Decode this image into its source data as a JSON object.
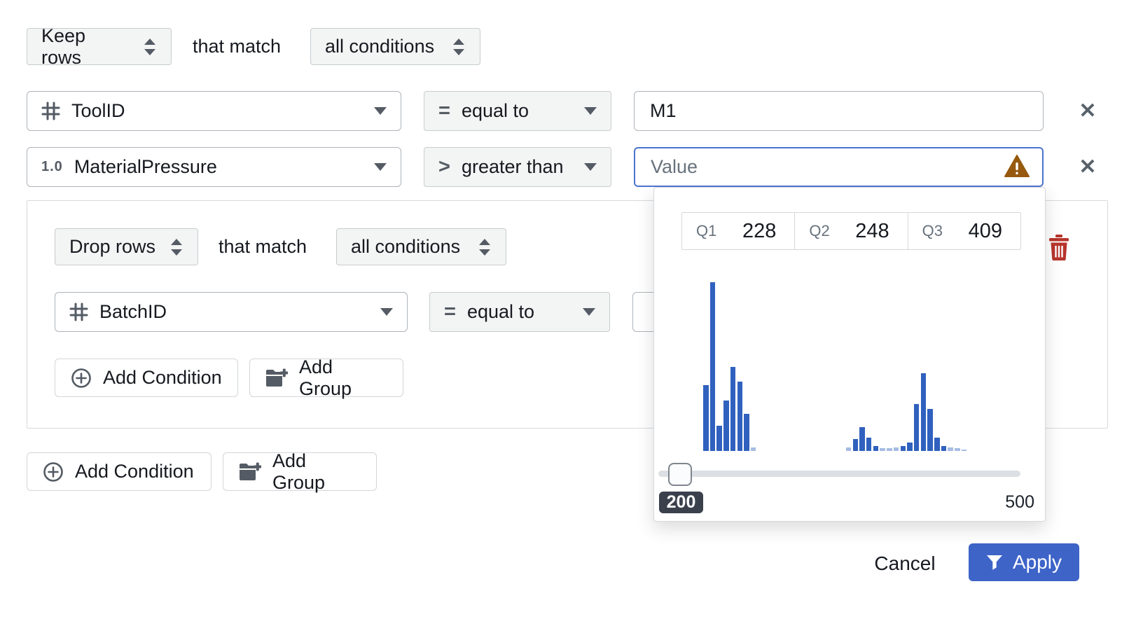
{
  "root": {
    "action_label": "Keep rows",
    "match_text": "that match",
    "conditions_label": "all conditions"
  },
  "row1": {
    "column": "ToolID",
    "operator": "equal to",
    "operator_symbol": "=",
    "value": "M1"
  },
  "row2": {
    "column": "MaterialPressure",
    "type_label": "1.0",
    "operator": "greater than",
    "operator_symbol": ">",
    "placeholder": "Value"
  },
  "group": {
    "action_label": "Drop rows",
    "match_text": "that match",
    "conditions_label": "all conditions",
    "row1": {
      "column": "BatchID",
      "operator": "equal to",
      "operator_symbol": "="
    },
    "add_condition_label": "Add Condition",
    "add_group_label": "Add Group"
  },
  "actions": {
    "add_condition_label": "Add Condition",
    "add_group_label": "Add Group"
  },
  "popup": {
    "quartiles": [
      {
        "label": "Q1",
        "value": "228"
      },
      {
        "label": "Q2",
        "value": "248"
      },
      {
        "label": "Q3",
        "value": "409"
      }
    ],
    "slider": {
      "current_value": "200",
      "max_value": "500"
    }
  },
  "footer": {
    "cancel_label": "Cancel",
    "apply_label": "Apply"
  },
  "chart_data": {
    "type": "bar",
    "title": "",
    "x_range": [
      200,
      500
    ],
    "quartiles": {
      "q1": 228,
      "q2": 248,
      "q3": 409
    },
    "bars_percent_of_max": [
      39,
      100,
      15,
      30,
      50,
      41,
      22,
      2,
      0,
      0,
      0,
      0,
      0,
      0,
      0,
      0,
      0,
      0,
      0,
      0,
      0,
      2,
      7,
      14,
      8,
      3,
      1.5,
      1.5,
      2,
      3,
      5,
      28,
      46,
      25,
      8,
      3,
      2,
      1.5,
      1,
      0,
      0
    ],
    "slider_current": 200,
    "slider_max": 500
  },
  "colors": {
    "bar_blue": "#3061BE",
    "bar_faint_blue": "#a6bce3",
    "apply_blue": "#3e64c8",
    "warning_amber": "#96590d",
    "trash_red": "#b7352c",
    "icon_slate": "#545b64",
    "badge_dark": "#3b414c"
  }
}
